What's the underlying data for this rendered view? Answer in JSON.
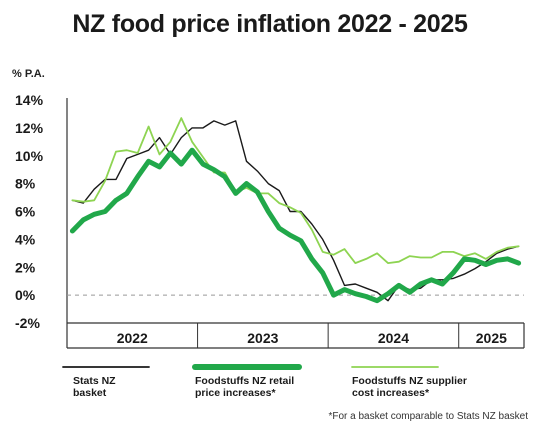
{
  "title": "NZ food price inflation 2022 - 2025",
  "chart_data": {
    "type": "line",
    "title": "NZ food price inflation 2022 - 2025",
    "ylabel": "% P.A.",
    "ylim": [
      -2,
      14
    ],
    "yticks": [
      -2,
      0,
      2,
      4,
      6,
      8,
      10,
      12,
      14
    ],
    "ytick_labels": [
      "-2%",
      "0%",
      "2%",
      "4%",
      "6%",
      "8%",
      "10%",
      "12%",
      "14%"
    ],
    "grid": false,
    "zero_reference_line": "dashed",
    "x_start": "2022-01",
    "x_end": "2025-06",
    "x_groups": [
      {
        "label": "2022",
        "start": "2022-01",
        "end": "2022-12"
      },
      {
        "label": "2023",
        "start": "2023-01",
        "end": "2023-12"
      },
      {
        "label": "2024",
        "start": "2024-01",
        "end": "2024-12"
      },
      {
        "label": "2025",
        "start": "2025-01",
        "end": "2025-06"
      }
    ],
    "series": [
      {
        "name": "Stats NZ basket",
        "color": "#1a1a1a",
        "style": "thin",
        "x": [
          "2022-01",
          "2022-02",
          "2022-03",
          "2022-04",
          "2022-05",
          "2022-06",
          "2022-07",
          "2022-08",
          "2022-09",
          "2022-10",
          "2022-11",
          "2022-12",
          "2023-01",
          "2023-02",
          "2023-03",
          "2023-04",
          "2023-05",
          "2023-06",
          "2023-07",
          "2023-08",
          "2023-09",
          "2023-10",
          "2023-11",
          "2023-12",
          "2024-01",
          "2024-02",
          "2024-03",
          "2024-04",
          "2024-05",
          "2024-06",
          "2024-07",
          "2024-08",
          "2024-09",
          "2024-10",
          "2024-11",
          "2024-12",
          "2025-01",
          "2025-02",
          "2025-03",
          "2025-04",
          "2025-05",
          "2025-06"
        ],
        "values": [
          6.8,
          6.6,
          7.6,
          8.3,
          8.3,
          9.8,
          10.1,
          10.4,
          11.3,
          10.1,
          11.3,
          12.0,
          12.0,
          12.5,
          12.2,
          12.5,
          9.6,
          8.9,
          8.0,
          7.5,
          6.0,
          6.0,
          5.1,
          4.0,
          2.5,
          0.7,
          0.8,
          0.5,
          0.2,
          -0.4,
          0.7,
          0.4,
          0.5,
          1.1,
          1.1,
          1.2,
          1.5,
          1.9,
          2.4,
          3.0,
          3.3,
          3.5
        ]
      },
      {
        "name": "Foodstuffs NZ retail price increases*",
        "color": "#21a84a",
        "style": "thick",
        "x": [
          "2022-01",
          "2022-02",
          "2022-03",
          "2022-04",
          "2022-05",
          "2022-06",
          "2022-07",
          "2022-08",
          "2022-09",
          "2022-10",
          "2022-11",
          "2022-12",
          "2023-01",
          "2023-02",
          "2023-03",
          "2023-04",
          "2023-05",
          "2023-06",
          "2023-07",
          "2023-08",
          "2023-09",
          "2023-10",
          "2023-11",
          "2023-12",
          "2024-01",
          "2024-02",
          "2024-03",
          "2024-04",
          "2024-05",
          "2024-06",
          "2024-07",
          "2024-08",
          "2024-09",
          "2024-10",
          "2024-11",
          "2024-12",
          "2025-01",
          "2025-02",
          "2025-03",
          "2025-04",
          "2025-05",
          "2025-06"
        ],
        "values": [
          4.6,
          5.4,
          5.8,
          6.0,
          6.8,
          7.3,
          8.5,
          9.6,
          9.2,
          10.2,
          9.4,
          10.4,
          9.4,
          9.0,
          8.5,
          7.3,
          8.0,
          7.4,
          6.0,
          4.8,
          4.3,
          3.9,
          2.6,
          1.6,
          0.0,
          0.4,
          0.1,
          -0.1,
          -0.4,
          0.1,
          0.7,
          0.2,
          0.8,
          1.1,
          0.8,
          1.6,
          2.6,
          2.5,
          2.2,
          2.5,
          2.6,
          2.3
        ]
      },
      {
        "name": "Foodstuffs NZ supplier cost increases*",
        "color": "#8ed452",
        "style": "thin",
        "x": [
          "2022-01",
          "2022-02",
          "2022-03",
          "2022-04",
          "2022-05",
          "2022-06",
          "2022-07",
          "2022-08",
          "2022-09",
          "2022-10",
          "2022-11",
          "2022-12",
          "2023-01",
          "2023-02",
          "2023-03",
          "2023-04",
          "2023-05",
          "2023-06",
          "2023-07",
          "2023-08",
          "2023-09",
          "2023-10",
          "2023-11",
          "2023-12",
          "2024-01",
          "2024-02",
          "2024-03",
          "2024-04",
          "2024-05",
          "2024-06",
          "2024-07",
          "2024-08",
          "2024-09",
          "2024-10",
          "2024-11",
          "2024-12",
          "2025-01",
          "2025-02",
          "2025-03",
          "2025-04",
          "2025-05",
          "2025-06"
        ],
        "values": [
          6.8,
          6.7,
          6.8,
          8.2,
          10.3,
          10.4,
          10.2,
          12.1,
          10.1,
          11.0,
          12.7,
          11.0,
          9.9,
          8.8,
          8.8,
          7.4,
          7.7,
          7.3,
          7.3,
          6.6,
          6.3,
          5.9,
          4.7,
          3.1,
          2.9,
          3.3,
          2.3,
          2.6,
          3.0,
          2.3,
          2.4,
          2.8,
          2.7,
          2.7,
          3.1,
          3.1,
          2.8,
          3.0,
          2.6,
          3.1,
          3.4,
          3.5
        ]
      }
    ],
    "legend_position": "bottom",
    "legend": [
      {
        "label": "Stats NZ\nbasket"
      },
      {
        "label": "Foodstuffs NZ retail\nprice increases*"
      },
      {
        "label": "Foodstuffs NZ supplier\ncost increases*"
      }
    ],
    "footnote": "*For a basket comparable to Stats NZ basket"
  }
}
